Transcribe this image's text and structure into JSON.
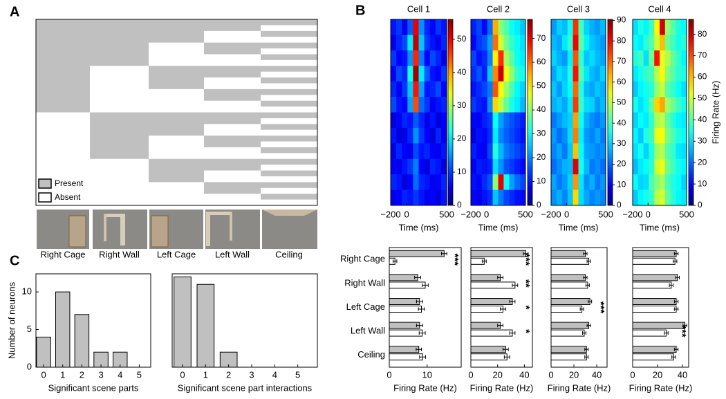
{
  "chart_data": [
    {
      "type": "matrix",
      "panel": "A",
      "columns": [
        "Right Cage",
        "Right Wall",
        "Left Cage",
        "Left Wall",
        "Ceiling"
      ],
      "legend": [
        "Present",
        "Absent"
      ],
      "present_color": "#c0c0c0",
      "absent_color": "#ffffff",
      "present": [
        [
          1,
          1,
          1,
          1,
          1
        ],
        [
          1,
          1,
          1,
          1,
          0
        ],
        [
          1,
          1,
          1,
          0,
          1
        ],
        [
          1,
          1,
          1,
          0,
          0
        ],
        [
          1,
          1,
          0,
          1,
          1
        ],
        [
          1,
          1,
          0,
          1,
          0
        ],
        [
          1,
          1,
          0,
          0,
          1
        ],
        [
          1,
          1,
          0,
          0,
          0
        ],
        [
          1,
          0,
          1,
          1,
          1
        ],
        [
          1,
          0,
          1,
          1,
          0
        ],
        [
          1,
          0,
          1,
          0,
          1
        ],
        [
          1,
          0,
          1,
          0,
          0
        ],
        [
          1,
          0,
          0,
          1,
          1
        ],
        [
          1,
          0,
          0,
          1,
          0
        ],
        [
          1,
          0,
          0,
          0,
          1
        ],
        [
          1,
          0,
          0,
          0,
          0
        ],
        [
          0,
          1,
          1,
          1,
          1
        ],
        [
          0,
          1,
          1,
          1,
          0
        ],
        [
          0,
          1,
          1,
          0,
          1
        ],
        [
          0,
          1,
          1,
          0,
          0
        ],
        [
          0,
          1,
          0,
          1,
          1
        ],
        [
          0,
          1,
          0,
          1,
          0
        ],
        [
          0,
          1,
          0,
          0,
          1
        ],
        [
          0,
          1,
          0,
          0,
          0
        ],
        [
          0,
          0,
          1,
          1,
          1
        ],
        [
          0,
          0,
          1,
          1,
          0
        ],
        [
          0,
          0,
          1,
          0,
          1
        ],
        [
          0,
          0,
          1,
          0,
          0
        ],
        [
          0,
          0,
          0,
          1,
          1
        ],
        [
          0,
          0,
          0,
          1,
          0
        ],
        [
          0,
          0,
          0,
          0,
          1
        ],
        [
          0,
          0,
          0,
          0,
          0
        ]
      ]
    },
    {
      "type": "heatmap",
      "panel": "B",
      "title": "Cell 1",
      "xlabel": "Time (ms)",
      "xlim": [
        -200,
        500
      ],
      "xticks": [
        {
          "value": -200,
          "label": "−200"
        },
        0,
        500
      ],
      "clim": [
        0,
        56
      ],
      "cticks": [
        0,
        10,
        20,
        30,
        40,
        50
      ],
      "z": [
        [
          8,
          10,
          6,
          12,
          50,
          15,
          9,
          7,
          10,
          8
        ],
        [
          6,
          9,
          11,
          20,
          52,
          18,
          10,
          8,
          6,
          9
        ],
        [
          10,
          7,
          8,
          15,
          47,
          14,
          7,
          11,
          9,
          6
        ],
        [
          7,
          11,
          9,
          22,
          54,
          20,
          12,
          8,
          7,
          10
        ],
        [
          9,
          6,
          10,
          18,
          48,
          16,
          8,
          9,
          11,
          7
        ],
        [
          11,
          8,
          7,
          16,
          45,
          13,
          10,
          6,
          8,
          9
        ],
        [
          5,
          7,
          9,
          8,
          12,
          9,
          6,
          8,
          5,
          7
        ],
        [
          8,
          5,
          6,
          9,
          15,
          10,
          7,
          5,
          9,
          6
        ],
        [
          6,
          9,
          7,
          6,
          11,
          8,
          9,
          7,
          6,
          8
        ],
        [
          7,
          6,
          8,
          10,
          14,
          7,
          5,
          9,
          8,
          5
        ],
        [
          9,
          8,
          5,
          7,
          13,
          9,
          8,
          6,
          7,
          9
        ],
        [
          6,
          7,
          9,
          8,
          10,
          8,
          6,
          7,
          5,
          8
        ]
      ]
    },
    {
      "type": "heatmap",
      "title": "Cell 2",
      "xlabel": "Time (ms)",
      "xlim": [
        -200,
        500
      ],
      "xticks": [
        {
          "value": -200,
          "label": "−200"
        },
        0,
        500
      ],
      "clim": [
        0,
        78
      ],
      "cticks": [
        0,
        10,
        20,
        30,
        40,
        50,
        60,
        70
      ],
      "z": [
        [
          12,
          15,
          10,
          18,
          55,
          40,
          35,
          30,
          28,
          25
        ],
        [
          10,
          14,
          16,
          22,
          60,
          45,
          38,
          33,
          30,
          27
        ],
        [
          15,
          11,
          13,
          20,
          50,
          65,
          42,
          36,
          30,
          28
        ],
        [
          13,
          16,
          12,
          25,
          58,
          72,
          48,
          40,
          33,
          30
        ],
        [
          11,
          13,
          15,
          19,
          62,
          48,
          41,
          35,
          29,
          26
        ],
        [
          14,
          12,
          11,
          21,
          52,
          44,
          37,
          31,
          28,
          24
        ],
        [
          10,
          9,
          12,
          14,
          30,
          22,
          18,
          16,
          14,
          12
        ],
        [
          8,
          11,
          10,
          13,
          28,
          20,
          17,
          15,
          13,
          11
        ],
        [
          12,
          10,
          9,
          15,
          32,
          24,
          19,
          17,
          15,
          13
        ],
        [
          9,
          12,
          11,
          12,
          27,
          21,
          16,
          14,
          12,
          10
        ],
        [
          11,
          10,
          13,
          16,
          40,
          70,
          30,
          22,
          18,
          15
        ],
        [
          10,
          8,
          11,
          13,
          25,
          19,
          15,
          13,
          11,
          10
        ]
      ]
    },
    {
      "type": "heatmap",
      "title": "Cell 3",
      "xlabel": "Time (ms)",
      "xlim": [
        -200,
        500
      ],
      "xticks": [
        {
          "value": -200,
          "label": "−200"
        },
        0,
        500
      ],
      "clim": [
        0,
        90.5
      ],
      "cticks": [
        0,
        10,
        20,
        30,
        40,
        50,
        60,
        70,
        80,
        90
      ],
      "z": [
        [
          25,
          30,
          28,
          35,
          75,
          40,
          30,
          27,
          25,
          28
        ],
        [
          28,
          26,
          32,
          38,
          80,
          42,
          33,
          29,
          27,
          25
        ],
        [
          30,
          27,
          25,
          33,
          72,
          38,
          29,
          31,
          28,
          26
        ],
        [
          26,
          31,
          29,
          36,
          78,
          41,
          32,
          28,
          26,
          30
        ],
        [
          29,
          25,
          30,
          34,
          70,
          37,
          28,
          26,
          29,
          27
        ],
        [
          27,
          29,
          26,
          32,
          74,
          39,
          31,
          30,
          25,
          28
        ],
        [
          22,
          25,
          28,
          30,
          65,
          35,
          27,
          24,
          22,
          25
        ],
        [
          25,
          21,
          24,
          31,
          68,
          33,
          25,
          23,
          26,
          22
        ],
        [
          23,
          26,
          22,
          29,
          62,
          34,
          26,
          25,
          23,
          24
        ],
        [
          21,
          24,
          27,
          28,
          82,
          36,
          28,
          22,
          24,
          21
        ],
        [
          26,
          22,
          25,
          30,
          66,
          32,
          24,
          27,
          22,
          25
        ],
        [
          24,
          27,
          23,
          29,
          60,
          31,
          26,
          23,
          25,
          23
        ]
      ]
    },
    {
      "type": "heatmap",
      "title": "Cell 4",
      "xlabel": "Time (ms)",
      "xlim": [
        -200,
        500
      ],
      "xticks": [
        {
          "value": -200,
          "label": "−200"
        },
        0,
        500
      ],
      "clim": [
        0,
        87
      ],
      "cticks": [
        0,
        10,
        20,
        30,
        40,
        50,
        60,
        70,
        80
      ],
      "clabel": "Firing Rate (Hz)",
      "z": [
        [
          30,
          35,
          32,
          38,
          55,
          80,
          45,
          40,
          35,
          33
        ],
        [
          33,
          31,
          36,
          40,
          50,
          60,
          42,
          38,
          34,
          36
        ],
        [
          35,
          38,
          30,
          42,
          75,
          52,
          48,
          41,
          37,
          32
        ],
        [
          31,
          34,
          37,
          39,
          48,
          55,
          44,
          40,
          36,
          35
        ],
        [
          28,
          32,
          34,
          36,
          45,
          50,
          40,
          37,
          33,
          30
        ],
        [
          34,
          30,
          33,
          41,
          58,
          62,
          46,
          42,
          38,
          34
        ],
        [
          29,
          33,
          31,
          37,
          47,
          49,
          41,
          36,
          32,
          31
        ],
        [
          32,
          28,
          35,
          38,
          52,
          54,
          43,
          39,
          35,
          33
        ],
        [
          30,
          34,
          29,
          35,
          46,
          48,
          40,
          37,
          31,
          30
        ],
        [
          27,
          31,
          33,
          36,
          50,
          53,
          42,
          38,
          34,
          32
        ],
        [
          33,
          29,
          30,
          39,
          44,
          47,
          39,
          35,
          33,
          29
        ],
        [
          28,
          32,
          34,
          37,
          48,
          51,
          41,
          36,
          32,
          31
        ]
      ]
    },
    {
      "type": "hbar",
      "categories": [
        "Right Cage",
        "Right Wall",
        "Left Cage",
        "Left Wall",
        "Ceiling"
      ],
      "xlabel": "Firing Rate (Hz)",
      "xlim": [
        0,
        19
      ],
      "xticks": [
        0,
        10
      ],
      "annotations": [
        "***",
        null,
        null,
        null,
        null
      ],
      "series": [
        {
          "color": "#c0c0c0",
          "values": [
            14.5,
            7.5,
            8,
            8,
            7.8
          ],
          "errors": [
            0.7,
            0.8,
            0.8,
            0.8,
            0.7
          ]
        },
        {
          "color": "#ffffff",
          "values": [
            1.5,
            9.5,
            8.5,
            8.7,
            8.8
          ],
          "errors": [
            0.5,
            0.8,
            0.8,
            0.8,
            0.8
          ]
        }
      ]
    },
    {
      "type": "hbar",
      "xlabel": "Firing Rate (Hz)",
      "xlim": [
        0,
        46
      ],
      "xticks": [
        0,
        20,
        40
      ],
      "annotations": [
        "***",
        "**",
        "*",
        "*",
        null
      ],
      "series": [
        {
          "color": "#c0c0c0",
          "values": [
            41,
            22,
            31,
            22,
            26
          ],
          "errors": [
            1.8,
            2,
            2,
            2,
            2
          ]
        },
        {
          "color": "#ffffff",
          "values": [
            10,
            33,
            24,
            31,
            27
          ],
          "errors": [
            1.5,
            2,
            2,
            2,
            2
          ]
        }
      ]
    },
    {
      "type": "hbar",
      "xlabel": "Firing Rate (Hz)",
      "xlim": [
        0,
        49
      ],
      "xticks": [
        0,
        20,
        40
      ],
      "annotations": [
        null,
        null,
        "***",
        null,
        null
      ],
      "series": [
        {
          "color": "#c0c0c0",
          "values": [
            30,
            30,
            34,
            33,
            31
          ],
          "errors": [
            1.5,
            1.5,
            1.5,
            1.5,
            1.5
          ]
        },
        {
          "color": "#ffffff",
          "values": [
            33,
            32,
            27,
            29,
            31
          ],
          "errors": [
            1.5,
            1.5,
            1.5,
            1.5,
            1.5
          ]
        }
      ]
    },
    {
      "type": "hbar",
      "xlabel": "Firing Rate (Hz)",
      "xlim": [
        0,
        45
      ],
      "xticks": [
        0,
        20,
        40
      ],
      "annotations": [
        null,
        null,
        null,
        "***",
        null
      ],
      "series": [
        {
          "color": "#c0c0c0",
          "values": [
            35,
            36,
            35,
            42,
            35
          ],
          "errors": [
            1.5,
            1.5,
            1.5,
            1.5,
            1.5
          ]
        },
        {
          "color": "#ffffff",
          "values": [
            34,
            31,
            35,
            27,
            33
          ],
          "errors": [
            1.5,
            1.5,
            1.5,
            1.5,
            1.5
          ]
        }
      ]
    },
    {
      "type": "bar",
      "panel": "C",
      "color": "#c0c0c0",
      "x": [
        0,
        1,
        2,
        3,
        4,
        5
      ],
      "values": [
        4,
        10,
        7,
        2,
        2,
        0
      ],
      "xlim": [
        -0.4,
        5.6
      ],
      "xticks": [
        0,
        1,
        2,
        3,
        4,
        5
      ],
      "ylim": [
        0,
        12.4
      ],
      "yticks": [
        0,
        5,
        10
      ],
      "xlabel": "Significant scene parts",
      "ylabel": "Number of neurons"
    },
    {
      "type": "bar",
      "color": "#c0c0c0",
      "x": [
        0,
        1,
        2,
        3,
        4,
        5
      ],
      "values": [
        12,
        11,
        2,
        0,
        0,
        0
      ],
      "xlim": [
        -0.45,
        5.85
      ],
      "xticks": [
        0,
        1,
        2,
        3,
        4,
        5
      ],
      "ylim": [
        0,
        12.4
      ],
      "xlabel": "Significant scene part interactions"
    }
  ]
}
